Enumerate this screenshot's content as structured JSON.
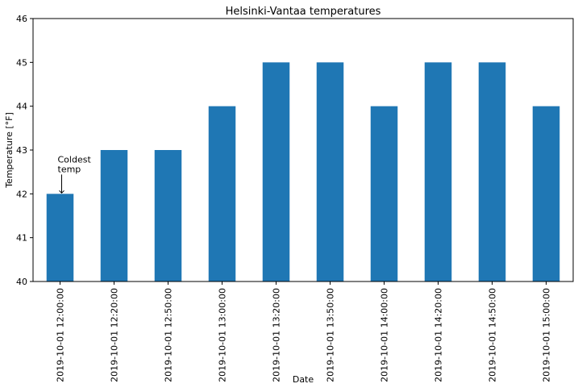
{
  "chart_data": {
    "type": "bar",
    "title": "Helsinki-Vantaa temperatures",
    "xlabel": "Date",
    "ylabel": "Temperature [°F]",
    "categories": [
      "2019-10-01 12:00:00",
      "2019-10-01 12:20:00",
      "2019-10-01 12:50:00",
      "2019-10-01 13:00:00",
      "2019-10-01 13:20:00",
      "2019-10-01 13:50:00",
      "2019-10-01 14:00:00",
      "2019-10-01 14:20:00",
      "2019-10-01 14:50:00",
      "2019-10-01 15:00:00"
    ],
    "values": [
      42,
      43,
      43,
      44,
      45,
      45,
      44,
      45,
      45,
      44
    ],
    "ylim": [
      40,
      46
    ],
    "yticks": [
      40,
      41,
      42,
      43,
      44,
      45,
      46
    ],
    "bar_color": "#1f77b4",
    "grid": false,
    "legend": "none",
    "annotations": [
      {
        "text": "Coldest\ntemp",
        "category": "2019-10-01 12:00:00",
        "value": 42,
        "text_value": 42.35,
        "arrow": true
      }
    ]
  }
}
